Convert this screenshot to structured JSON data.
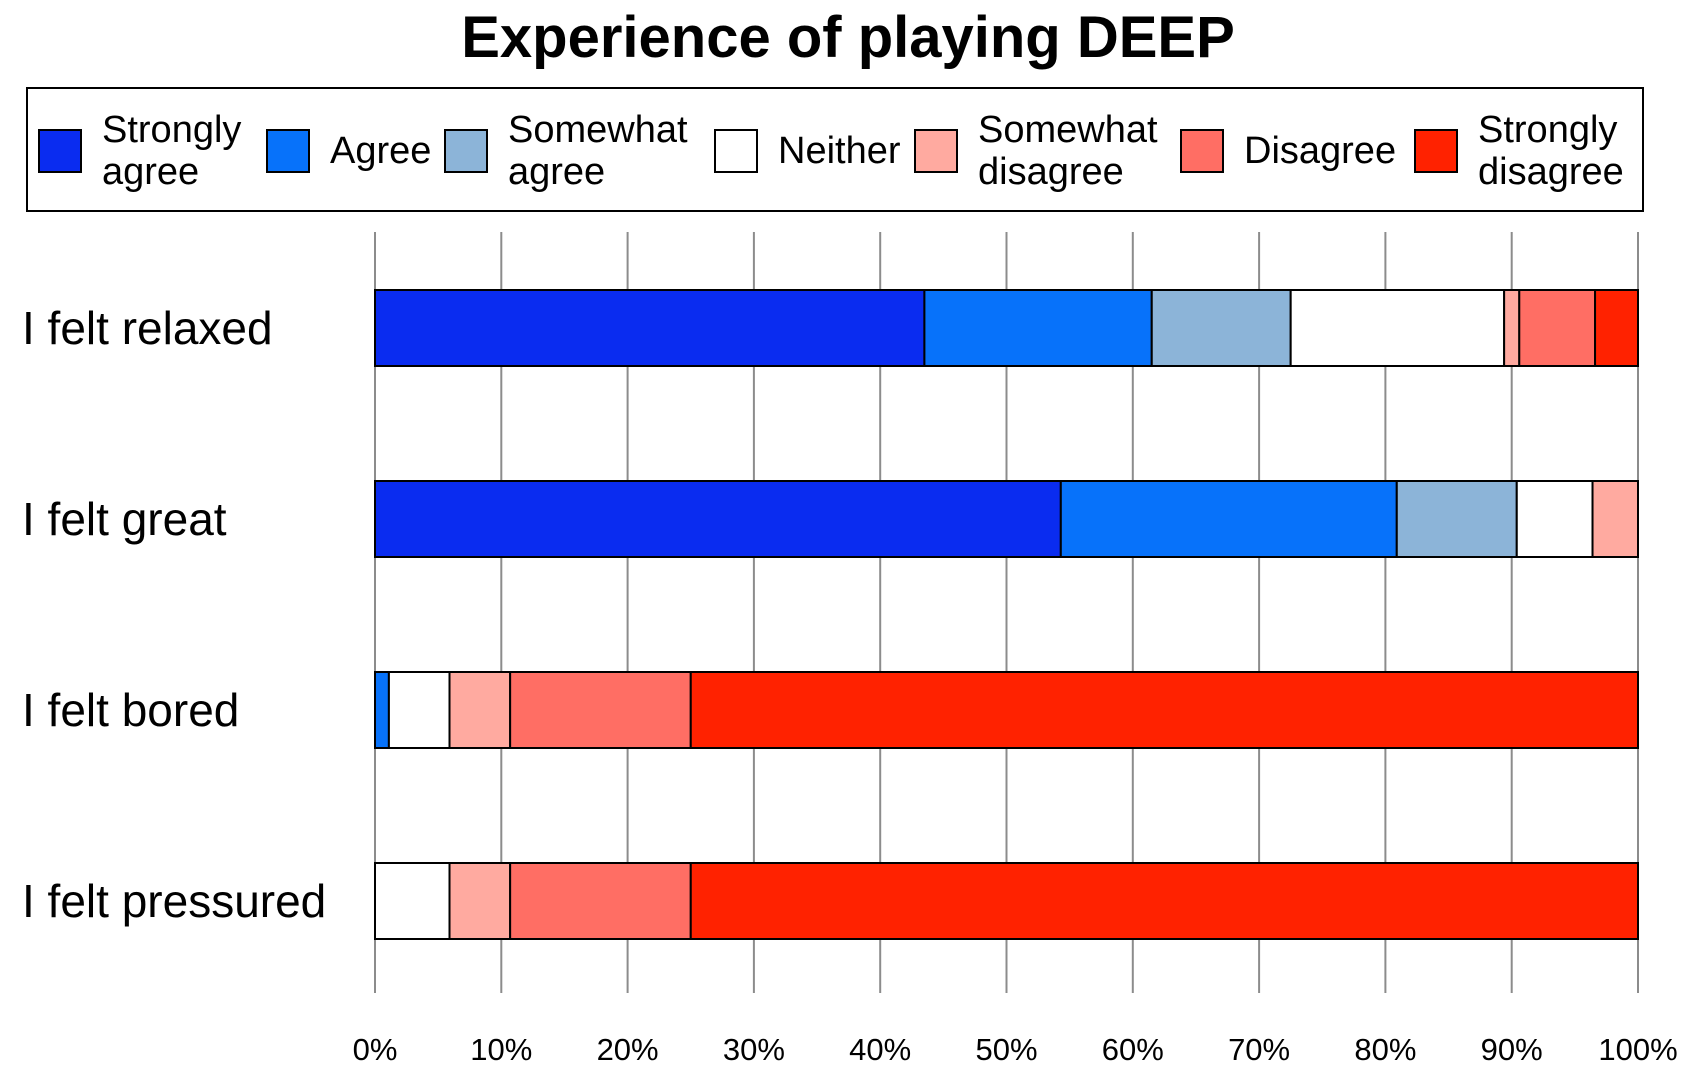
{
  "chart_data": {
    "type": "bar",
    "orientation": "horizontal",
    "stacked": "percent",
    "title": "Experience of playing DEEP",
    "xlabel": "",
    "ylabel": "",
    "xlim": [
      0,
      100
    ],
    "x_ticks": [
      "0%",
      "10%",
      "20%",
      "30%",
      "40%",
      "50%",
      "60%",
      "70%",
      "80%",
      "90%",
      "100%"
    ],
    "grid": "vertical",
    "legend_position": "top",
    "categories": [
      "I felt relaxed",
      "I felt great",
      "I felt bored",
      "I felt pressured"
    ],
    "series": [
      {
        "name": "Strongly\nagree",
        "color": "#0a2cf0",
        "values": [
          43.5,
          54.3,
          0,
          0
        ]
      },
      {
        "name": "Agree",
        "color": "#0772fa",
        "values": [
          18.0,
          26.6,
          1.1,
          0
        ]
      },
      {
        "name": "Somewhat\nagree",
        "color": "#8cb4d8",
        "values": [
          11.0,
          9.5,
          0,
          0
        ]
      },
      {
        "name": "Neither",
        "color": "#ffffff",
        "values": [
          16.9,
          6.0,
          4.8,
          5.9
        ]
      },
      {
        "name": "Somewhat\ndisagree",
        "color": "#ffaaa0",
        "values": [
          1.2,
          3.6,
          4.8,
          4.8
        ]
      },
      {
        "name": "Disagree",
        "color": "#ff6e64",
        "values": [
          6.0,
          0,
          14.3,
          14.3
        ]
      },
      {
        "name": "Strongly\ndisagree",
        "color": "#ff2200",
        "values": [
          3.4,
          0,
          75.0,
          75.0
        ]
      }
    ]
  }
}
